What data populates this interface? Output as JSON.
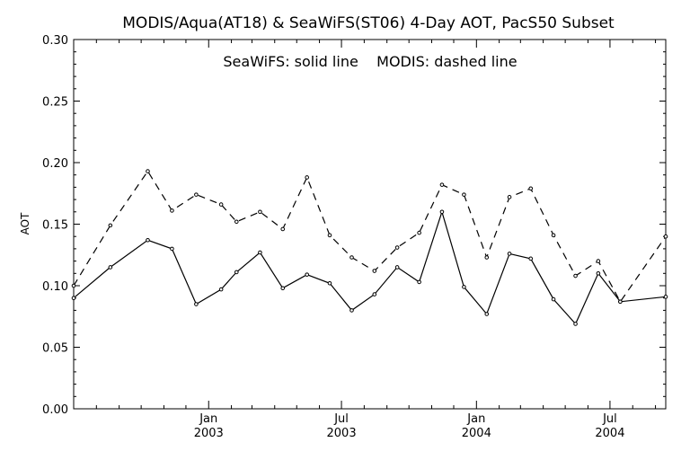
{
  "chart_data": {
    "type": "line",
    "title": "MODIS/Aqua(AT18) & SeaWiFS(ST06) 4-Day AOT, PacS50 Subset",
    "annotation": "SeaWiFS: solid line    MODIS: dashed line",
    "ylabel": "AOT",
    "xlabel": "",
    "ylim": [
      0,
      0.3
    ],
    "yticks": [
      0.0,
      0.05,
      0.1,
      0.15,
      0.2,
      0.25,
      0.3
    ],
    "ytick_labels": [
      "0.00",
      "0.05",
      "0.10",
      "0.15",
      "0.20",
      "0.25",
      "0.30"
    ],
    "xlim": [
      "2002-07-01",
      "2004-09-15"
    ],
    "xticks": [
      {
        "date": "2003-01-01",
        "line1": "Jan",
        "line2": "2003"
      },
      {
        "date": "2003-07-01",
        "line1": "Jul",
        "line2": "2003"
      },
      {
        "date": "2004-01-01",
        "line1": "Jan",
        "line2": "2004"
      },
      {
        "date": "2004-07-01",
        "line1": "Jul",
        "line2": "2004"
      }
    ],
    "grid": false,
    "series": [
      {
        "name": "SeaWiFS",
        "style": "solid",
        "color": "#000000",
        "points": [
          {
            "x": "2002-07-01",
            "y": 0.09
          },
          {
            "x": "2002-08-20",
            "y": 0.115
          },
          {
            "x": "2002-10-10",
            "y": 0.137
          },
          {
            "x": "2002-11-12",
            "y": 0.13
          },
          {
            "x": "2002-12-15",
            "y": 0.085
          },
          {
            "x": "2003-01-18",
            "y": 0.097
          },
          {
            "x": "2003-02-08",
            "y": 0.111
          },
          {
            "x": "2003-03-12",
            "y": 0.127
          },
          {
            "x": "2003-04-12",
            "y": 0.098
          },
          {
            "x": "2003-05-15",
            "y": 0.109
          },
          {
            "x": "2003-06-15",
            "y": 0.102
          },
          {
            "x": "2003-07-15",
            "y": 0.08
          },
          {
            "x": "2003-08-15",
            "y": 0.093
          },
          {
            "x": "2003-09-15",
            "y": 0.115
          },
          {
            "x": "2003-10-15",
            "y": 0.103
          },
          {
            "x": "2003-11-15",
            "y": 0.16
          },
          {
            "x": "2003-12-15",
            "y": 0.099
          },
          {
            "x": "2004-01-15",
            "y": 0.077
          },
          {
            "x": "2004-02-15",
            "y": 0.126
          },
          {
            "x": "2004-03-15",
            "y": 0.122
          },
          {
            "x": "2004-04-15",
            "y": 0.089
          },
          {
            "x": "2004-05-15",
            "y": 0.069
          },
          {
            "x": "2004-06-15",
            "y": 0.11
          },
          {
            "x": "2004-07-15",
            "y": 0.087
          },
          {
            "x": "2004-09-15",
            "y": 0.091
          }
        ]
      },
      {
        "name": "MODIS",
        "style": "dashed",
        "color": "#000000",
        "points": [
          {
            "x": "2002-07-01",
            "y": 0.1
          },
          {
            "x": "2002-08-20",
            "y": 0.149
          },
          {
            "x": "2002-10-10",
            "y": 0.193
          },
          {
            "x": "2002-11-12",
            "y": 0.161
          },
          {
            "x": "2002-12-15",
            "y": 0.174
          },
          {
            "x": "2003-01-18",
            "y": 0.166
          },
          {
            "x": "2003-02-08",
            "y": 0.152
          },
          {
            "x": "2003-03-12",
            "y": 0.16
          },
          {
            "x": "2003-04-12",
            "y": 0.146
          },
          {
            "x": "2003-05-15",
            "y": 0.188
          },
          {
            "x": "2003-06-15",
            "y": 0.141
          },
          {
            "x": "2003-07-15",
            "y": 0.123
          },
          {
            "x": "2003-08-15",
            "y": 0.112
          },
          {
            "x": "2003-09-15",
            "y": 0.131
          },
          {
            "x": "2003-10-15",
            "y": 0.143
          },
          {
            "x": "2003-11-15",
            "y": 0.182
          },
          {
            "x": "2003-12-15",
            "y": 0.174
          },
          {
            "x": "2004-01-15",
            "y": 0.123
          },
          {
            "x": "2004-02-15",
            "y": 0.172
          },
          {
            "x": "2004-03-15",
            "y": 0.179
          },
          {
            "x": "2004-04-15",
            "y": 0.141
          },
          {
            "x": "2004-05-15",
            "y": 0.108
          },
          {
            "x": "2004-06-15",
            "y": 0.12
          },
          {
            "x": "2004-07-15",
            "y": 0.087
          },
          {
            "x": "2004-09-15",
            "y": 0.14
          }
        ]
      }
    ]
  }
}
